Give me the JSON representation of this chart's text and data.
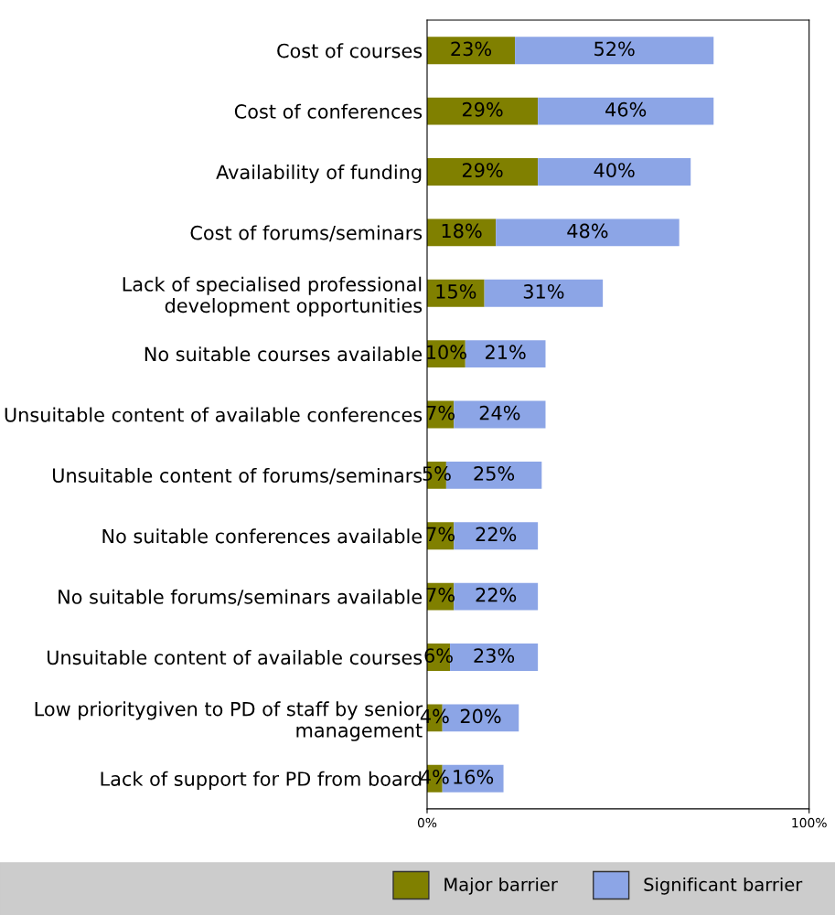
{
  "chart_data": {
    "type": "bar",
    "orientation": "horizontal",
    "stacked": true,
    "categories": [
      "Cost of courses",
      "Cost of conferences",
      "Availability of funding",
      "Cost of forums/seminars",
      "Lack of specialised professional development opportunities",
      "No suitable courses available",
      "Unsuitable content of available conferences",
      "Unsuitable content of forums/seminars",
      "No suitable conferences available",
      "No suitable forums/seminars available",
      "Unsuitable content of available courses",
      "Low prioritygiven to PD of staff by senior management",
      "Lack of support for PD from board"
    ],
    "series": [
      {
        "name": "Major barrier",
        "color": "#808000",
        "values": [
          23,
          29,
          29,
          18,
          15,
          10,
          7,
          5,
          7,
          7,
          6,
          4,
          4
        ],
        "value_labels": [
          "23%",
          "29%",
          "29%",
          "18%",
          "15%",
          "10%",
          "7%",
          "5%",
          "7%",
          "7%",
          "6%",
          "4%",
          "4%"
        ]
      },
      {
        "name": "Significant barrier",
        "color": "#8ca5e6",
        "values": [
          52,
          46,
          40,
          48,
          31,
          21,
          24,
          25,
          22,
          22,
          23,
          20,
          16
        ],
        "value_labels": [
          "52%",
          "46%",
          "40%",
          "48%",
          "31%",
          "21%",
          "24%",
          "25%",
          "22%",
          "22%",
          "23%",
          "20%",
          "16%"
        ]
      }
    ],
    "xlim": [
      0,
      100
    ],
    "xticks": [
      {
        "value": 0,
        "label": "0%"
      },
      {
        "value": 100,
        "label": "100%"
      }
    ],
    "grid": false,
    "legend": "bottom"
  }
}
